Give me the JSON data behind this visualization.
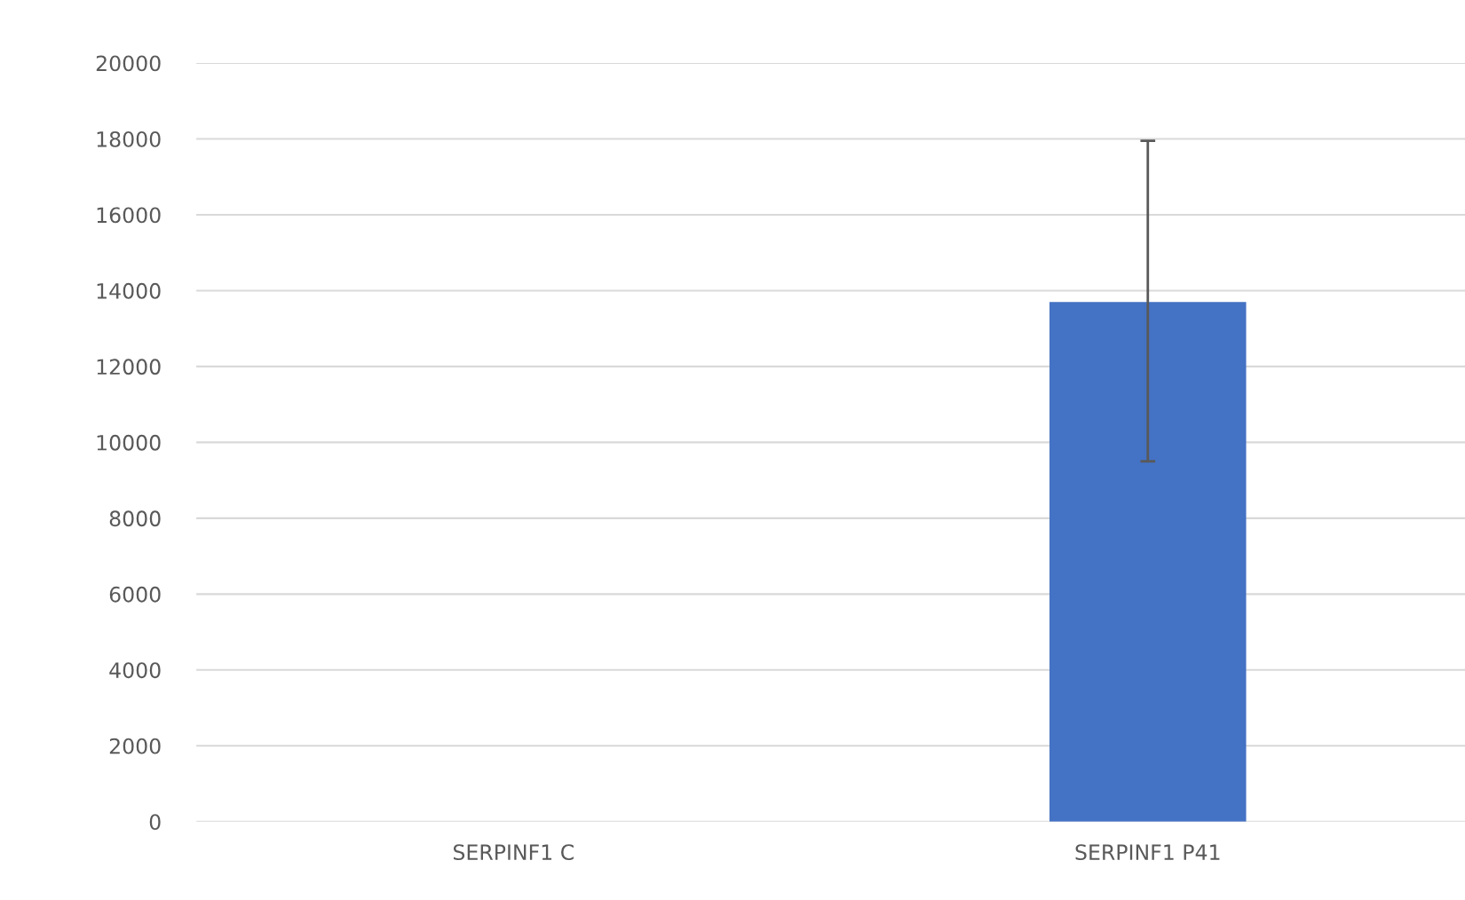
{
  "chart_data": {
    "type": "bar",
    "categories": [
      "SERPINF1 C",
      "SERPINF1 P41"
    ],
    "values": [
      0,
      13700
    ],
    "errors": [
      null,
      [
        9500,
        17950
      ]
    ],
    "color": "#4472c4",
    "ylim": [
      0,
      20000
    ],
    "yticks": [
      0,
      2000,
      4000,
      6000,
      8000,
      10000,
      12000,
      14000,
      16000,
      18000,
      20000
    ],
    "grid": "y"
  }
}
